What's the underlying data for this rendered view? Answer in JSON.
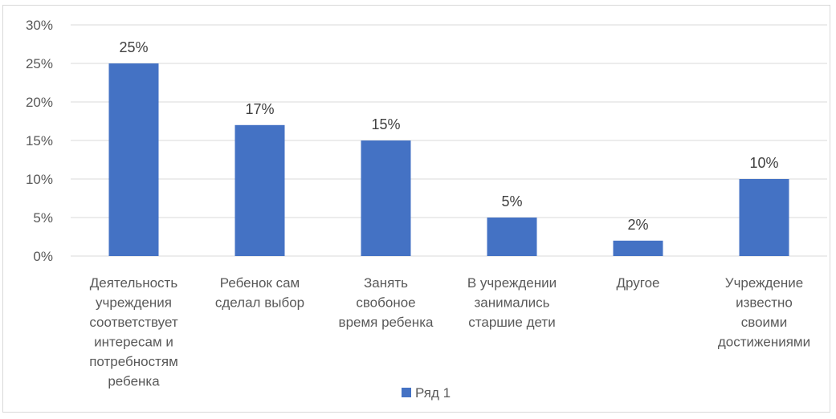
{
  "chart_data": {
    "type": "bar",
    "categories": [
      [
        "Деятельность",
        "учреждения",
        "соответствует",
        "интересам и",
        "потребностям",
        "ребенка"
      ],
      [
        "Ребенок сам",
        "сделал выбор"
      ],
      [
        "Занять",
        "свобоное",
        "время ребенка"
      ],
      [
        "В учреждении",
        "занимались",
        "старшие дети"
      ],
      [
        "Другое"
      ],
      [
        "Учреждение",
        "известно",
        "своими",
        "достижениями"
      ]
    ],
    "series": [
      {
        "name": "Ряд 1",
        "values": [
          25,
          17,
          15,
          5,
          2,
          10
        ],
        "labels": [
          "25%",
          "17%",
          "15%",
          "5%",
          "2%",
          "10%"
        ]
      }
    ],
    "y_ticks": [
      "0%",
      "5%",
      "10%",
      "15%",
      "20%",
      "25%",
      "30%"
    ],
    "ylim": [
      0,
      30
    ],
    "grid": true,
    "legend_position": "bottom",
    "colors": {
      "bar": "#4472c4",
      "grid": "#d9d9d9",
      "text": "#595959"
    }
  }
}
